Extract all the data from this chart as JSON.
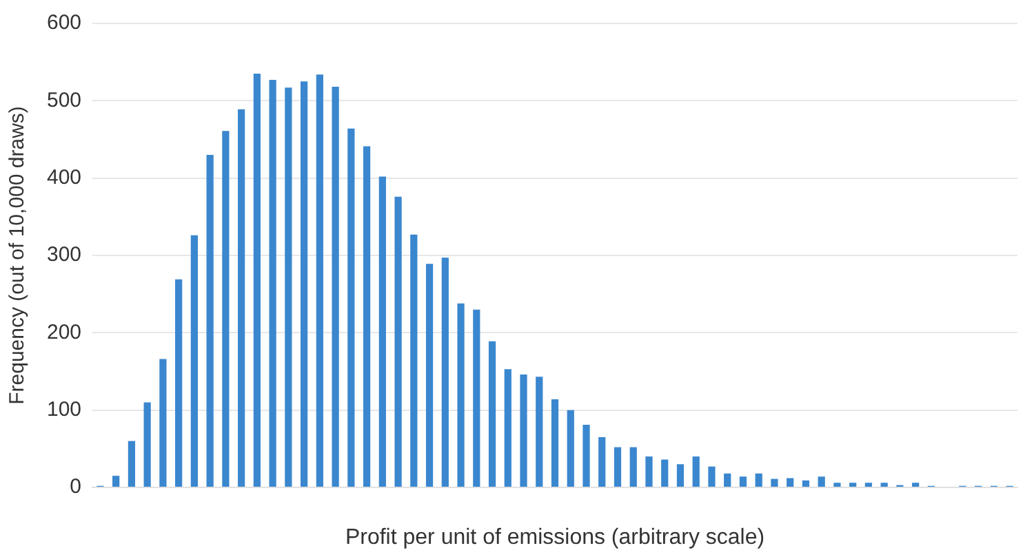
{
  "chart_data": {
    "type": "bar",
    "xlabel": "Profit per unit of emissions (arbitrary scale)",
    "ylabel": "Frequency (out of 10,000 draws)",
    "categories": [
      null,
      null,
      null,
      null,
      null,
      null,
      null,
      null,
      null,
      null,
      null,
      null,
      null,
      null,
      null,
      null,
      null,
      null,
      null,
      null,
      null,
      null,
      null,
      null,
      null,
      null,
      null,
      null,
      null,
      null,
      null,
      null,
      null,
      null,
      null,
      null,
      null,
      null,
      null,
      null,
      null,
      null,
      null,
      null,
      null,
      null,
      null,
      null,
      null,
      null,
      null,
      null,
      null,
      null,
      null,
      null,
      null,
      null,
      null
    ],
    "values": [
      2,
      15,
      60,
      110,
      166,
      269,
      326,
      430,
      461,
      489,
      535,
      527,
      517,
      525,
      534,
      518,
      464,
      441,
      402,
      376,
      327,
      289,
      297,
      238,
      230,
      189,
      153,
      146,
      143,
      114,
      100,
      81,
      65,
      52,
      52,
      40,
      36,
      30,
      40,
      27,
      18,
      14,
      18,
      11,
      12,
      9,
      14,
      6,
      6,
      6,
      6,
      3,
      6,
      2,
      0,
      2,
      2,
      2,
      2
    ],
    "color": "#3a87cf",
    "ylim": [
      0,
      600
    ],
    "yticks": [
      0,
      100,
      200,
      300,
      400,
      500,
      600
    ],
    "grid": "y",
    "legend": false
  }
}
